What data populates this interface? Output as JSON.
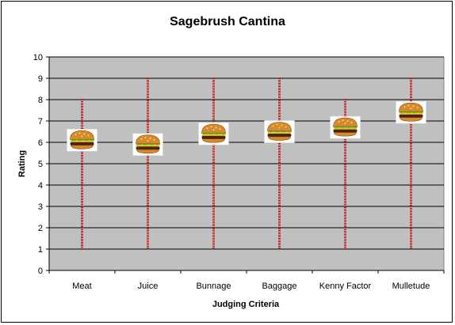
{
  "chart_data": {
    "type": "bar",
    "title": "Sagebrush Cantina",
    "xlabel": "Judging Criteria",
    "ylabel": "Rating",
    "ylim": [
      0,
      10
    ],
    "yticks": [
      0,
      1,
      2,
      3,
      4,
      5,
      6,
      7,
      8,
      9,
      10
    ],
    "grid": true,
    "categories": [
      "Meat",
      "Juice",
      "Bunnage",
      "Baggage",
      "Kenny Factor",
      "Mulletude"
    ],
    "series": [
      {
        "marker": "hamburger-icon",
        "low": [
          1,
          1,
          1,
          1,
          1,
          1
        ],
        "high": [
          8,
          9,
          9,
          9,
          8,
          9
        ],
        "values": [
          6.1,
          5.9,
          6.4,
          6.5,
          6.7,
          7.4
        ]
      }
    ],
    "colors": {
      "plot_bg": "#c0c0c0",
      "range_line": "#cc0000",
      "grid": "#000000"
    }
  }
}
